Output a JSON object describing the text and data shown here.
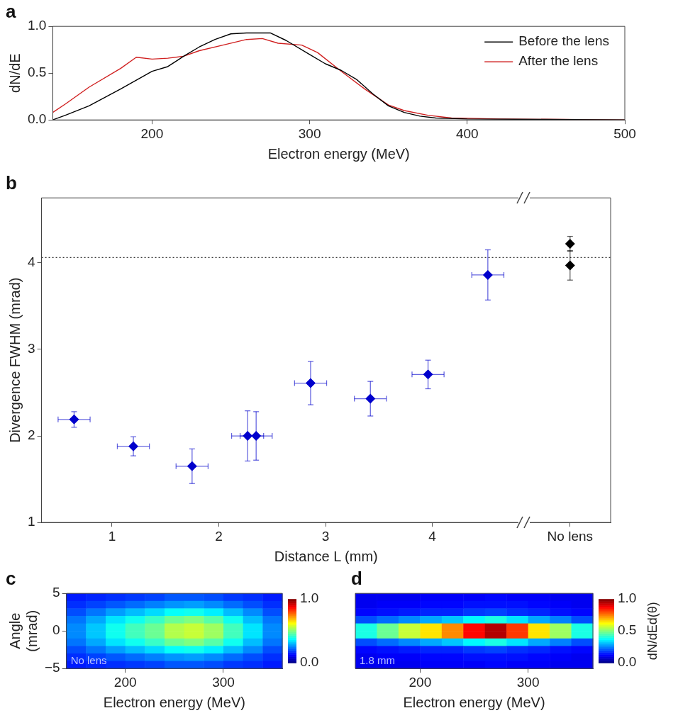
{
  "chart_data": [
    {
      "type": "line",
      "title": "a",
      "xlabel": "Electron energy (MeV)",
      "ylabel": "dN/dE",
      "xlim": [
        137,
        500
      ],
      "xticks": [
        200,
        300,
        400,
        500
      ],
      "ylim": [
        0,
        1
      ],
      "yticks": [
        {
          "value": 0,
          "label": "0.0"
        },
        {
          "value": 0.5,
          "label": "0.5"
        },
        {
          "value": 1,
          "label": "1.0"
        }
      ],
      "grid": false,
      "legend": "top right",
      "marker": "none",
      "line_style": "solid",
      "series": [
        {
          "name": "Before the lens",
          "color": "#000000",
          "x": [
            137,
            145,
            160,
            180,
            200,
            210,
            220,
            230,
            240,
            250,
            260,
            275,
            285,
            300,
            310,
            320,
            330,
            340,
            350,
            360,
            370,
            380,
            400,
            450,
            500
          ],
          "values": [
            0.0,
            0.05,
            0.15,
            0.33,
            0.52,
            0.57,
            0.68,
            0.78,
            0.86,
            0.92,
            0.93,
            0.93,
            0.85,
            0.7,
            0.6,
            0.53,
            0.43,
            0.28,
            0.15,
            0.08,
            0.04,
            0.02,
            0.01,
            0.005,
            0.0
          ]
        },
        {
          "name": "After the lens",
          "color": "#d02020",
          "x": [
            137,
            145,
            160,
            180,
            190,
            200,
            210,
            220,
            230,
            245,
            260,
            270,
            280,
            295,
            305,
            320,
            335,
            350,
            360,
            375,
            390,
            420,
            500
          ],
          "values": [
            0.08,
            0.17,
            0.35,
            0.55,
            0.67,
            0.65,
            0.66,
            0.68,
            0.74,
            0.8,
            0.86,
            0.87,
            0.82,
            0.8,
            0.72,
            0.52,
            0.33,
            0.16,
            0.1,
            0.05,
            0.02,
            0.01,
            0.0
          ]
        }
      ]
    },
    {
      "type": "scatter",
      "title": "b",
      "xlabel": "Distance L (mm)",
      "ylabel": "Divergence FWHM (mrad)",
      "xlim": [
        0.34,
        5.67
      ],
      "xticks": [
        1,
        2,
        3,
        4,
        {
          "value": 5.29,
          "label": "No lens"
        }
      ],
      "ylim": [
        1,
        4.75
      ],
      "yticks": [
        1,
        2,
        3,
        4
      ],
      "grid": false,
      "legend": false,
      "marker": "diamond",
      "ref_lines": [
        {
          "axis": "y",
          "value": 4.06,
          "line_style": "dotted",
          "color": "#333333"
        }
      ],
      "series": [
        {
          "color": "#0000cc",
          "x": [
            0.645,
            1.2,
            1.75,
            2.27,
            2.35,
            2.86,
            3.42,
            3.96,
            4.52
          ],
          "values": [
            2.19,
            1.88,
            1.65,
            2.0,
            2.0,
            2.61,
            2.43,
            2.71,
            3.86
          ],
          "errors": [
            0.09,
            0.11,
            0.2,
            0.29,
            0.28,
            0.25,
            0.2,
            0.165,
            0.29
          ],
          "xerrors": [
            0.15,
            0.15,
            0.15,
            0.15,
            0.15,
            0.15,
            0.15,
            0.15,
            0.15
          ]
        },
        {
          "color": "#000000",
          "x": [
            5.29,
            5.29
          ],
          "values": [
            4.22,
            3.97
          ],
          "errors": [
            0.085,
            0.17
          ]
        }
      ]
    },
    {
      "type": "heatmap",
      "title": "c",
      "xlabel": "Electron energy (MeV)",
      "ylabel": "Angle (mrad)",
      "xlim": [
        140,
        360
      ],
      "xticks": [
        200,
        300
      ],
      "ylim": [
        -5,
        5
      ],
      "yticks": [
        5,
        0,
        {
          "value": -5,
          "label": "−5"
        }
      ],
      "clim": [
        0,
        1
      ],
      "cticks": [
        {
          "value": 0,
          "label": "0.0"
        },
        {
          "value": 1,
          "label": "1.0"
        }
      ],
      "annotations": [
        "No lens"
      ],
      "x": [
        150,
        170,
        190,
        210,
        230,
        250,
        270,
        290,
        310,
        330,
        350
      ],
      "y": [
        4.5,
        3.5,
        2.5,
        1.5,
        0.5,
        -0.5,
        -1.5,
        -2.5,
        -3.5,
        -4.5
      ],
      "cells": [
        [
          0.15,
          0.16,
          0.17,
          0.18,
          0.19,
          0.21,
          0.21,
          0.2,
          0.18,
          0.17,
          0.15
        ],
        [
          0.17,
          0.19,
          0.21,
          0.23,
          0.25,
          0.27,
          0.28,
          0.26,
          0.23,
          0.2,
          0.17
        ],
        [
          0.2,
          0.24,
          0.28,
          0.31,
          0.34,
          0.38,
          0.39,
          0.36,
          0.31,
          0.26,
          0.2
        ],
        [
          0.24,
          0.29,
          0.35,
          0.39,
          0.43,
          0.48,
          0.5,
          0.46,
          0.39,
          0.31,
          0.24
        ],
        [
          0.26,
          0.32,
          0.39,
          0.44,
          0.48,
          0.55,
          0.57,
          0.53,
          0.44,
          0.35,
          0.26
        ],
        [
          0.26,
          0.32,
          0.39,
          0.44,
          0.48,
          0.55,
          0.57,
          0.53,
          0.44,
          0.35,
          0.26
        ],
        [
          0.24,
          0.29,
          0.35,
          0.39,
          0.43,
          0.48,
          0.5,
          0.46,
          0.39,
          0.31,
          0.24
        ],
        [
          0.2,
          0.24,
          0.28,
          0.31,
          0.34,
          0.38,
          0.39,
          0.36,
          0.31,
          0.26,
          0.2
        ],
        [
          0.17,
          0.19,
          0.21,
          0.23,
          0.25,
          0.27,
          0.28,
          0.26,
          0.23,
          0.2,
          0.17
        ],
        [
          0.15,
          0.16,
          0.17,
          0.18,
          0.19,
          0.21,
          0.21,
          0.2,
          0.18,
          0.17,
          0.15
        ]
      ]
    },
    {
      "type": "heatmap",
      "title": "d",
      "xlabel": "Electron energy (MeV)",
      "clabel": "dN/dEd(θ)",
      "xlim": [
        140,
        360
      ],
      "xticks": [
        200,
        300
      ],
      "ylim": [
        -5,
        5
      ],
      "tick_labels": "x",
      "clim": [
        0,
        1
      ],
      "cticks": [
        {
          "value": 0,
          "label": "0.0"
        },
        {
          "value": 0.5,
          "label": "0.5"
        },
        {
          "value": 1,
          "label": "1.0"
        }
      ],
      "annotations": [
        "1.8 mm"
      ],
      "x": [
        150,
        170,
        190,
        210,
        230,
        250,
        270,
        290,
        310,
        330,
        350
      ],
      "y": [
        4.5,
        3.5,
        2.5,
        1.5,
        0.5,
        -0.5,
        -1.5,
        -2.5,
        -3.5,
        -4.5
      ],
      "cells": [
        [
          0.11,
          0.11,
          0.11,
          0.12,
          0.12,
          0.12,
          0.13,
          0.12,
          0.12,
          0.11,
          0.11
        ],
        [
          0.11,
          0.12,
          0.12,
          0.13,
          0.13,
          0.14,
          0.14,
          0.14,
          0.13,
          0.12,
          0.11
        ],
        [
          0.13,
          0.14,
          0.15,
          0.16,
          0.16,
          0.18,
          0.19,
          0.17,
          0.16,
          0.14,
          0.13
        ],
        [
          0.2,
          0.23,
          0.26,
          0.29,
          0.32,
          0.37,
          0.4,
          0.35,
          0.29,
          0.25,
          0.2
        ],
        [
          0.4,
          0.48,
          0.57,
          0.65,
          0.74,
          0.87,
          0.95,
          0.82,
          0.65,
          0.53,
          0.4
        ],
        [
          0.4,
          0.48,
          0.57,
          0.65,
          0.74,
          0.87,
          0.95,
          0.82,
          0.65,
          0.53,
          0.4
        ],
        [
          0.2,
          0.23,
          0.26,
          0.29,
          0.32,
          0.37,
          0.4,
          0.35,
          0.29,
          0.25,
          0.2
        ],
        [
          0.13,
          0.14,
          0.15,
          0.16,
          0.16,
          0.18,
          0.19,
          0.17,
          0.16,
          0.14,
          0.13
        ],
        [
          0.11,
          0.12,
          0.12,
          0.13,
          0.13,
          0.14,
          0.14,
          0.14,
          0.13,
          0.12,
          0.11
        ],
        [
          0.11,
          0.11,
          0.11,
          0.12,
          0.12,
          0.12,
          0.13,
          0.12,
          0.12,
          0.11,
          0.11
        ]
      ]
    }
  ]
}
